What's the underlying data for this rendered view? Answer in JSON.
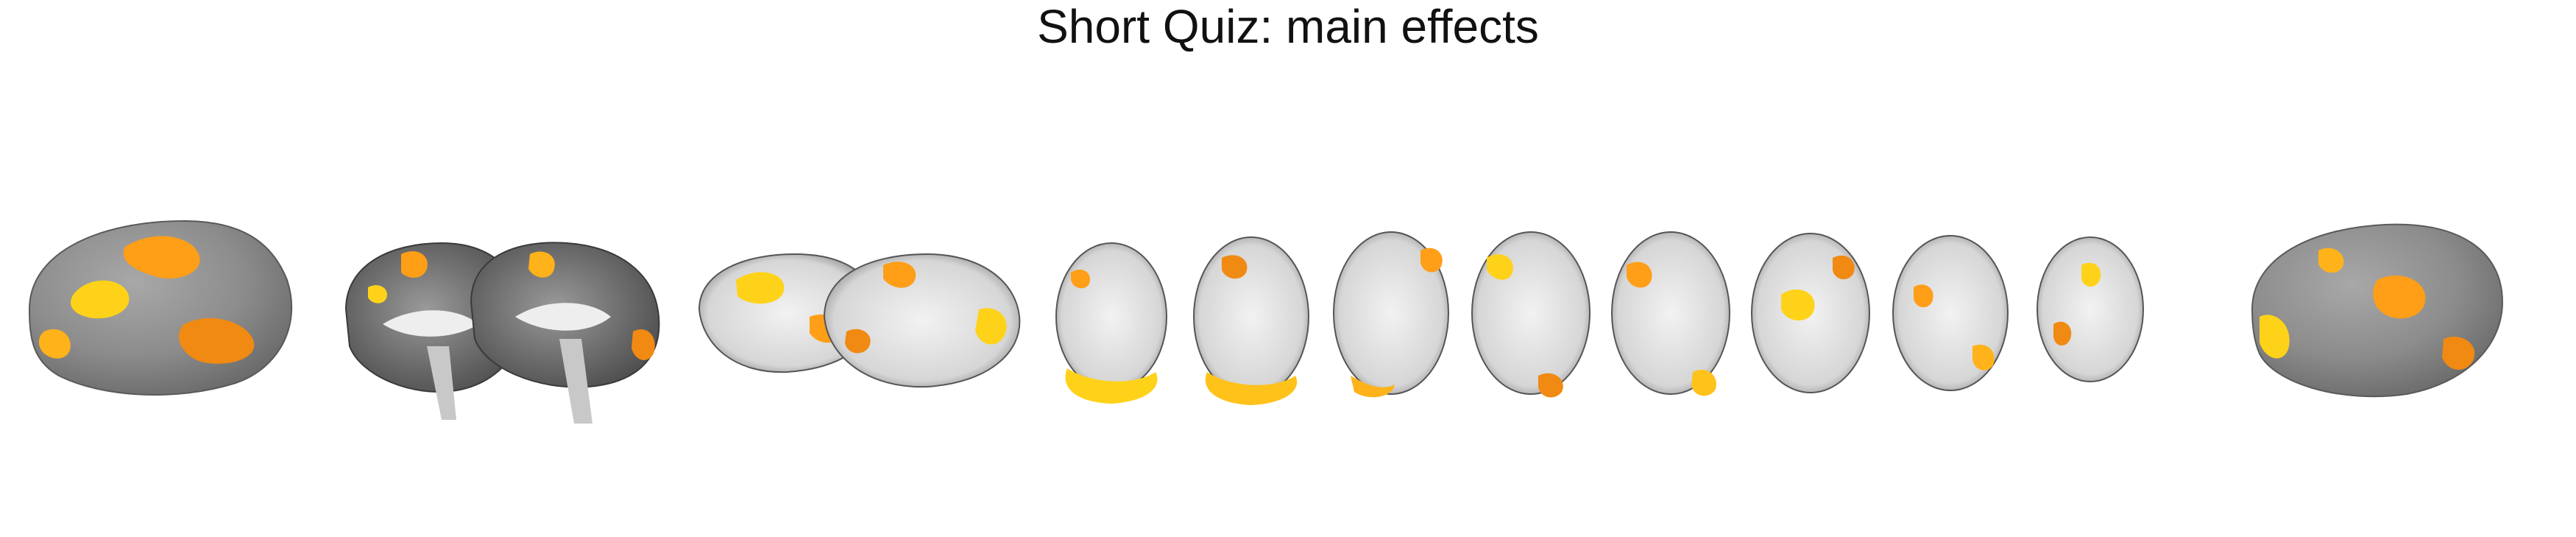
{
  "figure": {
    "title": "Short Quiz: main effects",
    "panels": [
      {
        "name": "surface-left-lateral",
        "kind": "inflated-surface"
      },
      {
        "name": "sagittal-slices-medial",
        "kind": "sagittal",
        "count": 2
      },
      {
        "name": "sagittal-slices-lateral",
        "kind": "sagittal",
        "count": 2
      },
      {
        "name": "axial-slices",
        "kind": "axial",
        "count": 8
      },
      {
        "name": "surface-right-lateral",
        "kind": "inflated-surface"
      }
    ]
  },
  "colors": {
    "background": "#ffffff",
    "surface": "#8c8c8c",
    "surface_dark": "#6a6a6a",
    "anatomy_dark": "#5c5c5c",
    "white_matter": "#e4e4e4",
    "activation_low": "#e86f0c",
    "activation_mid": "#ff9e17",
    "activation_high": "#ffe21f"
  }
}
